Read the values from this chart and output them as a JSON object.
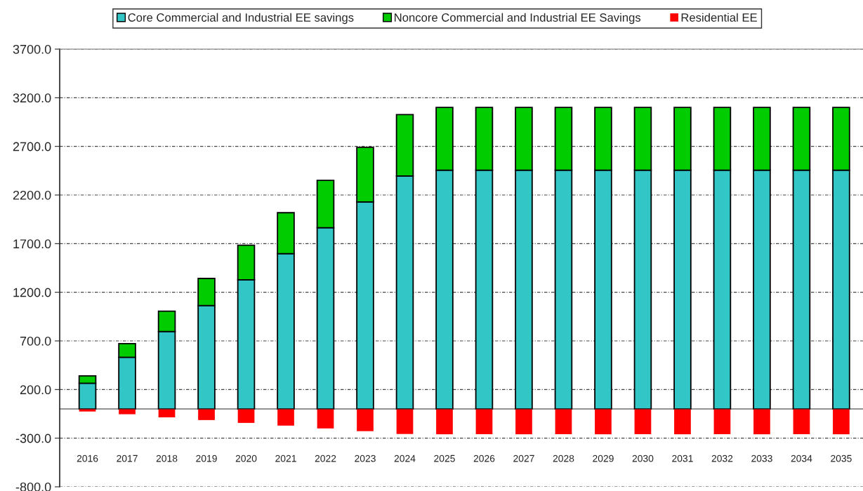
{
  "chart_data": {
    "type": "bar",
    "stacked": true,
    "categories": [
      "2016",
      "2017",
      "2018",
      "2019",
      "2020",
      "2021",
      "2022",
      "2023",
      "2024",
      "2025",
      "2026",
      "2027",
      "2028",
      "2029",
      "2030",
      "2031",
      "2032",
      "2033",
      "2034",
      "2035"
    ],
    "series": [
      {
        "name": "Core Commercial and Industrial EE savings",
        "color": "#33c6c6",
        "values": [
          265,
          532,
          797,
          1063,
          1328,
          1597,
          1864,
          2129,
          2396,
          2455,
          2455,
          2455,
          2455,
          2455,
          2455,
          2455,
          2455,
          2455,
          2455,
          2455
        ]
      },
      {
        "name": "Noncore Commercial and Industrial EE Savings",
        "color": "#00cc00",
        "values": [
          75,
          140,
          209,
          279,
          355,
          421,
          487,
          560,
          631,
          645,
          645,
          645,
          645,
          645,
          645,
          645,
          645,
          645,
          645,
          645
        ]
      },
      {
        "name": "Residential EE",
        "color": "#ff0000",
        "values": [
          -26,
          -54,
          -86,
          -114,
          -143,
          -171,
          -200,
          -228,
          -257,
          -260,
          -260,
          -260,
          -260,
          -260,
          -260,
          -260,
          -260,
          -260,
          -260,
          -260
        ]
      }
    ],
    "ylim": [
      -800,
      3700
    ],
    "yticks": [
      {
        "value": -800,
        "label": "-800.0"
      },
      {
        "value": -300,
        "label": "-300.0"
      },
      {
        "value": 200,
        "label": "200.0"
      },
      {
        "value": 700,
        "label": "700.0"
      },
      {
        "value": 1200,
        "label": "1200.0"
      },
      {
        "value": 1700,
        "label": "1700.0"
      },
      {
        "value": 2200,
        "label": "2200.0"
      },
      {
        "value": 2700,
        "label": "2700.0"
      },
      {
        "value": 3200,
        "label": "3200.0"
      },
      {
        "value": 3700,
        "label": "3700.0"
      }
    ],
    "grid": "y",
    "legend": "top"
  }
}
